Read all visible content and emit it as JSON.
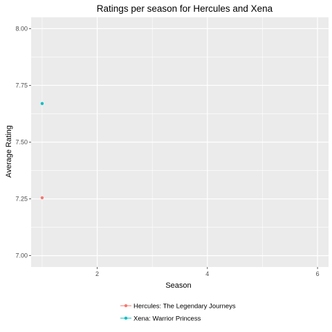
{
  "chart_data": {
    "type": "scatter",
    "title": "Ratings per season for Hercules and Xena",
    "xlabel": "Season",
    "ylabel": "Average Rating",
    "xlim": [
      0.8,
      6.2
    ],
    "ylim": [
      6.95,
      8.05
    ],
    "xticks": [
      2,
      4,
      6
    ],
    "yticks": [
      7.0,
      7.25,
      7.5,
      7.75,
      8.0
    ],
    "ytick_labels": [
      "7.00",
      "7.25",
      "7.50",
      "7.75",
      "8.00"
    ],
    "grid": true,
    "legend_position": "bottom",
    "series": [
      {
        "name": "Hercules: The Legendary Journeys",
        "color": "#F8766D",
        "points": [
          {
            "x": 1,
            "y": 7.255
          }
        ]
      },
      {
        "name": "Xena: Warrior Princess",
        "color": "#00BFC4",
        "points": [
          {
            "x": 1,
            "y": 7.67
          }
        ]
      }
    ],
    "panel_background": "#EBEBEB",
    "grid_color": "#FFFFFF"
  }
}
